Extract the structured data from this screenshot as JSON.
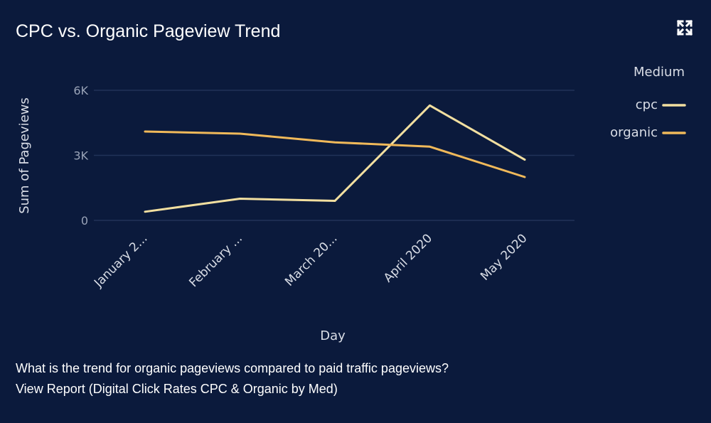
{
  "card": {
    "title": "CPC vs. Organic Pageview Trend",
    "expand_icon": "expand-icon",
    "question": "What is the trend for organic pageviews compared to paid traffic pageviews?",
    "report_link": "View Report (Digital Click Rates CPC & Organic by Med)"
  },
  "colors": {
    "background": "#0b1a3c",
    "cpc": "#f2dfa0",
    "organic": "#f0b95a",
    "gridline": "#223358"
  },
  "chart_data": {
    "type": "line",
    "xlabel": "Day",
    "ylabel": "Sum of Pageviews",
    "categories": [
      "January 2...",
      "February ...",
      "March 20...",
      "April 2020",
      "May 2020"
    ],
    "ylim": [
      0,
      6000
    ],
    "yticks": [
      0,
      3000,
      6000
    ],
    "ytick_labels": [
      "0",
      "3K",
      "6K"
    ],
    "grid": true,
    "legend": {
      "title": "Medium",
      "position": "top-right"
    },
    "series": [
      {
        "name": "cpc",
        "values": [
          400,
          1000,
          900,
          5300,
          2800
        ]
      },
      {
        "name": "organic",
        "values": [
          4100,
          4000,
          3600,
          3400,
          2000
        ]
      }
    ]
  }
}
